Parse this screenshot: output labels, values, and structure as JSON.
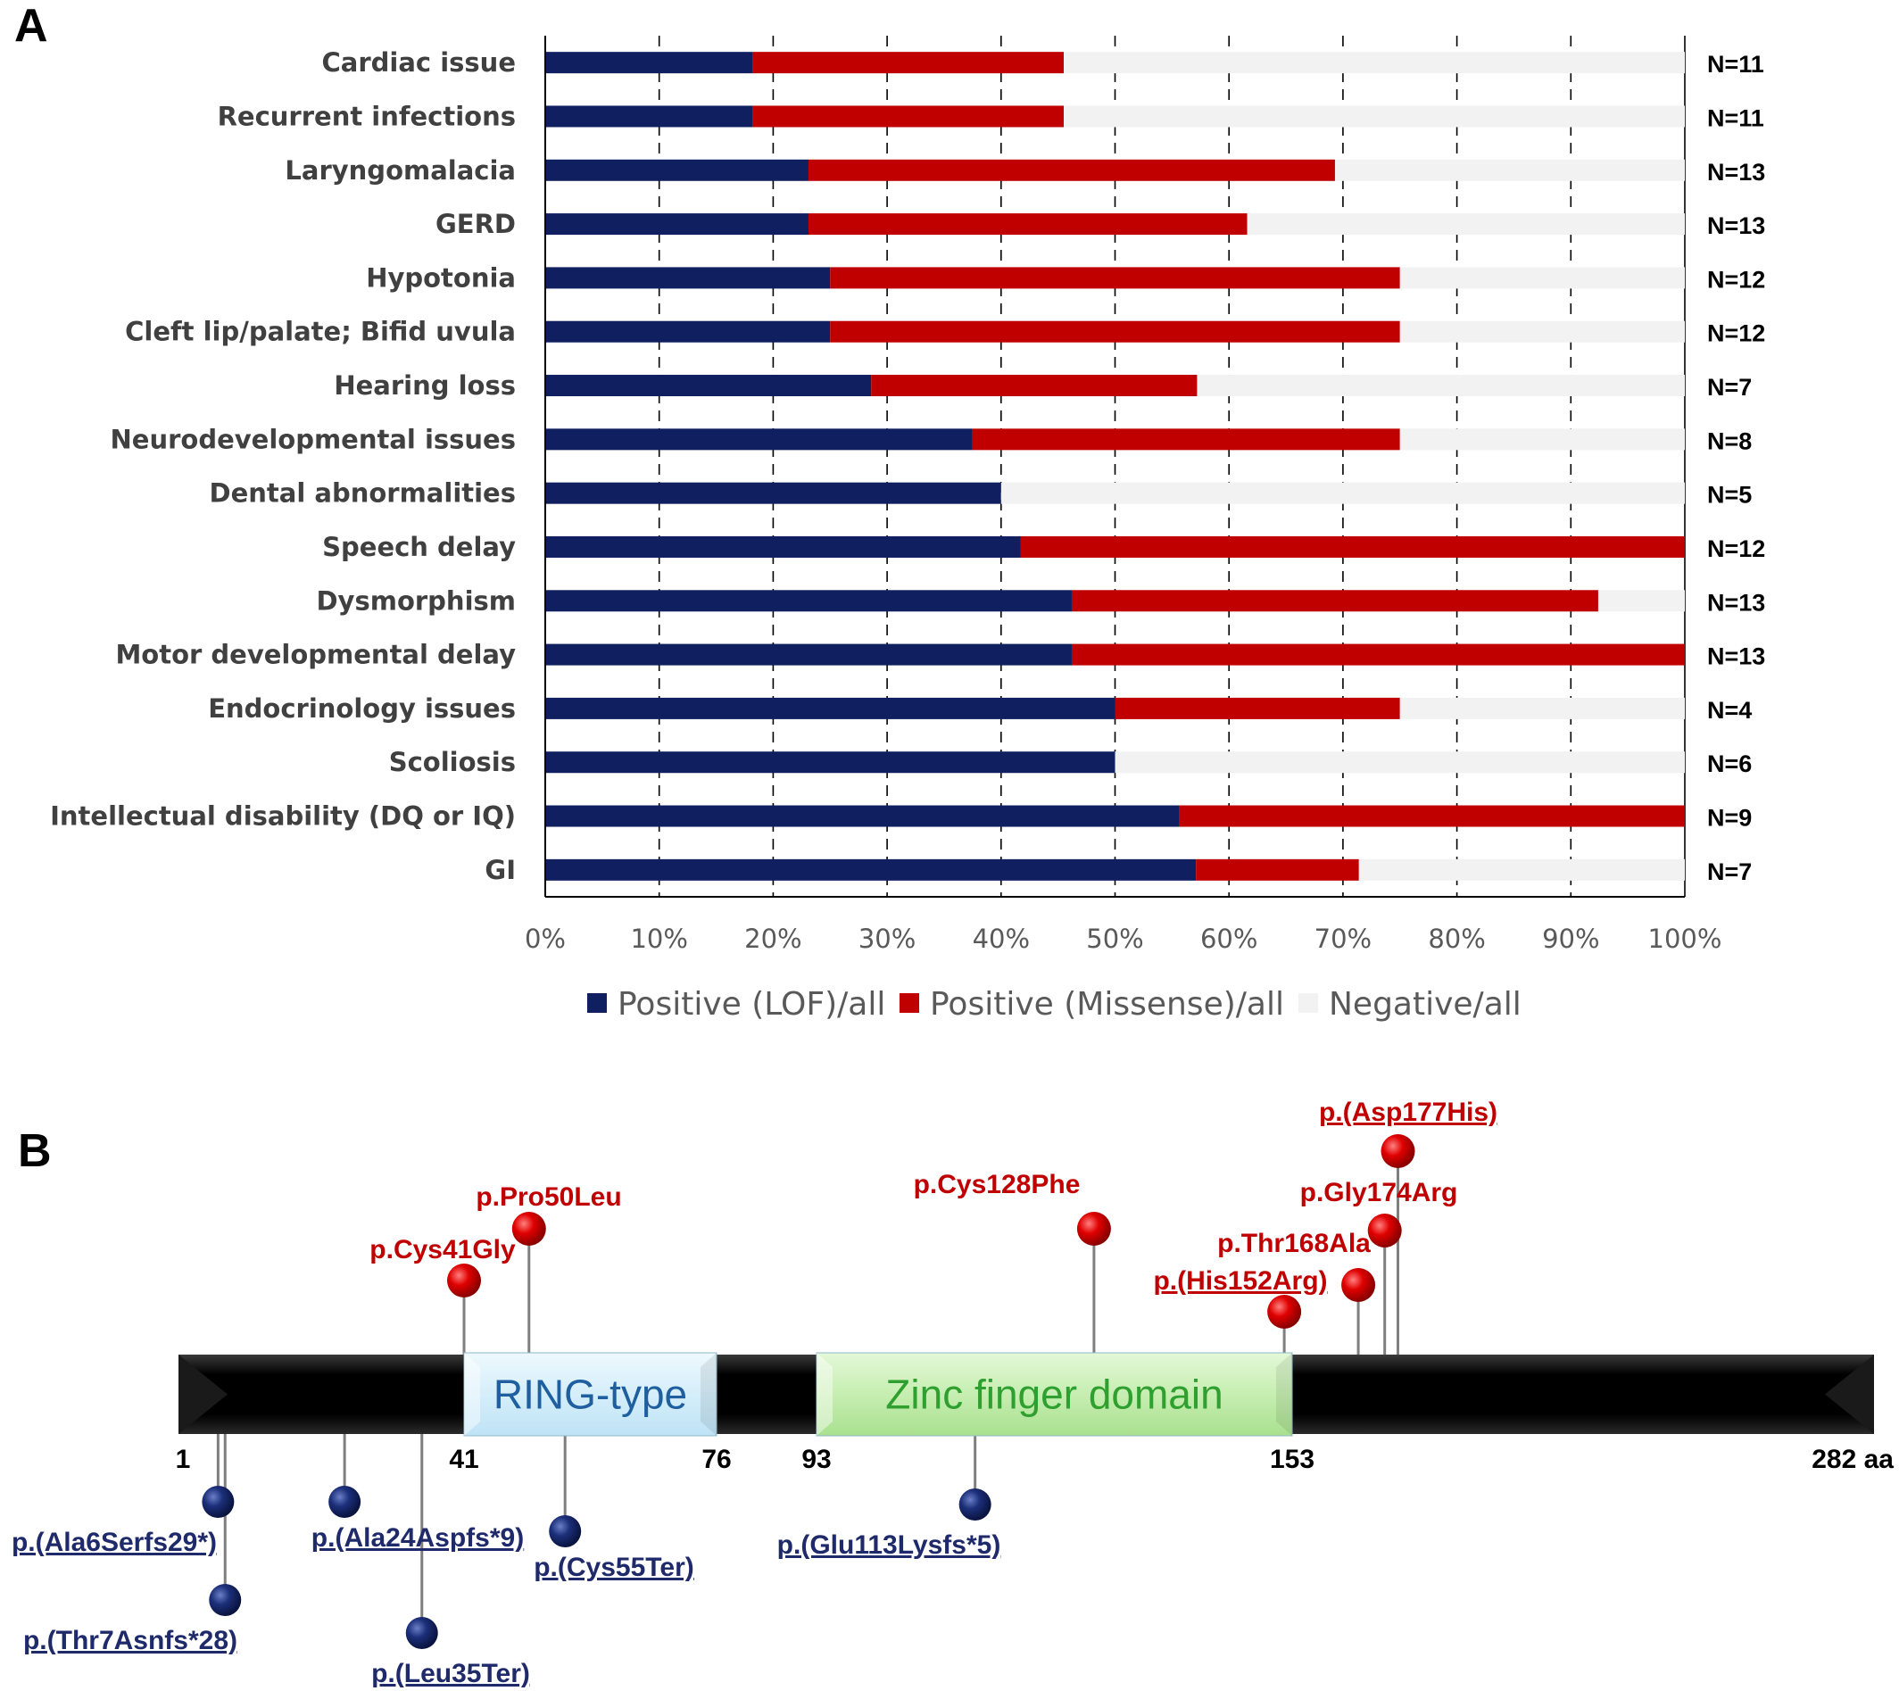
{
  "panels": {
    "a_letter": "A",
    "b_letter": "B"
  },
  "chart_data": {
    "type": "bar",
    "orientation": "horizontal",
    "stacked": true,
    "categories": [
      "Cardiac issue",
      "Recurrent infections",
      "Laryngomalacia",
      "GERD",
      "Hypotonia",
      "Cleft lip/palate; Bifid uvula",
      "Hearing loss",
      "Neurodevelopmental issues",
      "Dental abnormalities",
      "Speech delay",
      "Dysmorphism",
      "Motor developmental delay",
      "Endocrinology issues",
      "Scoliosis",
      "Intellectual disability (DQ or IQ)",
      "GI"
    ],
    "n_labels": [
      "N=11",
      "N=11",
      "N=13",
      "N=13",
      "N=12",
      "N=12",
      "N=7",
      "N=8",
      "N=5",
      "N=12",
      "N=13",
      "N=13",
      "N=4",
      "N=6",
      "N=9",
      "N=7"
    ],
    "series": [
      {
        "name": "Positive (LOF)/all",
        "color": "#0f1f5f",
        "values": [
          18.2,
          18.2,
          23.1,
          23.1,
          25.0,
          25.0,
          28.6,
          37.5,
          40.0,
          41.7,
          46.2,
          46.2,
          50.0,
          50.0,
          55.6,
          57.1
        ]
      },
      {
        "name": "Positive (Missense)/all",
        "color": "#c00000",
        "values": [
          27.3,
          27.3,
          46.2,
          38.5,
          50.0,
          50.0,
          28.6,
          37.5,
          0.0,
          58.3,
          46.2,
          53.8,
          25.0,
          0.0,
          44.4,
          14.3
        ]
      },
      {
        "name": "Negative/all",
        "color": "#f2f2f2",
        "values": [
          54.5,
          54.5,
          30.7,
          38.4,
          25.0,
          25.0,
          42.8,
          25.0,
          60.0,
          0.0,
          7.6,
          0.0,
          25.0,
          50.0,
          0.0,
          28.6
        ]
      }
    ],
    "xlim": [
      0,
      100
    ],
    "x_ticks": [
      "0%",
      "10%",
      "20%",
      "30%",
      "40%",
      "50%",
      "60%",
      "70%",
      "80%",
      "90%",
      "100%"
    ],
    "grid": "vertical dashed",
    "legend_position": "bottom"
  },
  "protein_map": {
    "length": 282,
    "unit": "aa",
    "position_labels": [
      {
        "aa": 1,
        "text": "1"
      },
      {
        "aa": 41,
        "text": "41"
      },
      {
        "aa": 76,
        "text": "76"
      },
      {
        "aa": 93,
        "text": "93"
      },
      {
        "aa": 153,
        "text": "153"
      },
      {
        "aa": 282,
        "text": "282 aa"
      }
    ],
    "domains": [
      {
        "name": "RING-type",
        "start": 41,
        "end": 76,
        "fill": "#ddf1fb",
        "text_color": "#1f5f9f"
      },
      {
        "name": "Zinc finger domain",
        "start": 93,
        "end": 153,
        "fill": "#c9efb8",
        "text_color": "#2f9f2f"
      }
    ],
    "missense": [
      {
        "label": "p.Cys41Gly",
        "aa": 41,
        "underline": false
      },
      {
        "label": "p.Pro50Leu",
        "aa": 50,
        "underline": false
      },
      {
        "label": "p.Cys128Phe",
        "aa": 128,
        "underline": false
      },
      {
        "label": "p.(His152Arg)",
        "aa": 152,
        "underline": true
      },
      {
        "label": "p.Thr168Ala",
        "aa": 168,
        "underline": false
      },
      {
        "label": "p.Gly174Arg",
        "aa": 174,
        "underline": false
      },
      {
        "label": "p.(Asp177His)",
        "aa": 177,
        "underline": true
      }
    ],
    "lof": [
      {
        "label": "p.(Ala6Serfs29*)",
        "aa": 6,
        "underline": true
      },
      {
        "label": "p.(Thr7Asnfs*28)",
        "aa": 7,
        "underline": true
      },
      {
        "label": "p.(Ala24Aspfs*9)",
        "aa": 24,
        "underline": true
      },
      {
        "label": "p.(Leu35Ter)",
        "aa": 35,
        "underline": true
      },
      {
        "label": "p.(Cys55Ter)",
        "aa": 55,
        "underline": true
      },
      {
        "label": "p.(Glu113Lysfs*5)",
        "aa": 113,
        "underline": true
      }
    ]
  }
}
